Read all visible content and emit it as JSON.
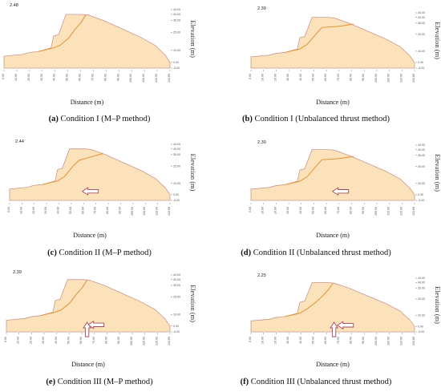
{
  "figure": {
    "colors": {
      "body_fill": "#fbe2ba",
      "body_stroke": "#c9978f",
      "slip": "#e3912f",
      "load_arrow": "#a8485a",
      "axis": "#555555"
    }
  },
  "chart_data": [
    {
      "type": "area",
      "panel": "a",
      "fos": "2.48",
      "caption_label": "(a)",
      "caption_text": "Condition I (M–P method)",
      "xlabel": "Distance (m)",
      "ylabel": "Elevation (m)",
      "xlim": [
        0,
        133.89
      ],
      "ylim": [
        -5,
        44
      ],
      "xticks": [
        "0.00",
        "10.00",
        "20.00",
        "30.00",
        "40.00",
        "50.00",
        "60.00",
        "70.00",
        "80.00",
        "90.00",
        "100.00",
        "110.00",
        "120.00",
        "133.89"
      ],
      "yticks": [
        [
          44,
          "44.00"
        ],
        [
          40,
          "40.00"
        ],
        [
          35,
          "35.00"
        ],
        [
          25,
          "25.00"
        ],
        [
          10,
          "10.00"
        ],
        [
          0,
          "0.00"
        ],
        [
          -5,
          "-5.00"
        ]
      ],
      "slope_profile": [
        [
          0,
          5
        ],
        [
          15,
          6.5
        ],
        [
          20,
          8
        ],
        [
          28,
          9
        ],
        [
          38,
          12
        ],
        [
          40,
          22
        ],
        [
          44,
          23
        ],
        [
          50,
          40
        ],
        [
          63,
          40
        ],
        [
          68,
          39.5
        ],
        [
          80,
          35
        ],
        [
          95,
          28
        ],
        [
          110,
          21
        ],
        [
          122,
          14
        ],
        [
          130,
          6
        ],
        [
          133.89,
          0
        ]
      ],
      "slip_surface": [
        [
          28,
          9
        ],
        [
          40,
          12
        ],
        [
          45,
          14
        ],
        [
          52,
          20
        ],
        [
          57,
          27
        ],
        [
          62,
          33
        ],
        [
          66,
          39.5
        ]
      ],
      "load_arrows": []
    },
    {
      "type": "area",
      "panel": "b",
      "fos": "2.39",
      "caption_label": "(b)",
      "caption_text": "Condition I (Unbalanced thrust method)",
      "xlabel": "Distance (m)",
      "ylabel": "Elevation (m)",
      "xlim": [
        0,
        133.89
      ],
      "ylim": [
        -5,
        44
      ],
      "xticks": [
        "0.00",
        "10.00",
        "20.00",
        "30.00",
        "40.00",
        "50.00",
        "60.00",
        "70.00",
        "80.00",
        "90.00",
        "100.00",
        "110.00",
        "120.00",
        "133.89"
      ],
      "yticks": [
        [
          44,
          "44.00"
        ],
        [
          40,
          "40.00"
        ],
        [
          35,
          "35.00"
        ],
        [
          25,
          "25.00"
        ],
        [
          10,
          "10.00"
        ],
        [
          0,
          "0.00"
        ],
        [
          -5,
          "-5.00"
        ]
      ],
      "slope_profile": [
        [
          0,
          5
        ],
        [
          15,
          6.5
        ],
        [
          20,
          8
        ],
        [
          28,
          9
        ],
        [
          38,
          12
        ],
        [
          40,
          22
        ],
        [
          44,
          23
        ],
        [
          50,
          40
        ],
        [
          63,
          40
        ],
        [
          68,
          39.5
        ],
        [
          80,
          35
        ],
        [
          95,
          28
        ],
        [
          110,
          21
        ],
        [
          122,
          14
        ],
        [
          130,
          6
        ],
        [
          133.89,
          0
        ]
      ],
      "slip_surface": [
        [
          28,
          9
        ],
        [
          40,
          12
        ],
        [
          46,
          16
        ],
        [
          53,
          25
        ],
        [
          58,
          31
        ],
        [
          72,
          32
        ],
        [
          84,
          34
        ]
      ],
      "load_arrows": []
    },
    {
      "type": "area",
      "panel": "c",
      "fos": "2.44",
      "caption_label": "(c)",
      "caption_text": "Condition II (M–P method)",
      "xlabel": "Distance (m)",
      "ylabel": "Elevation (m)",
      "xlim": [
        0,
        133.89
      ],
      "ylim": [
        -5,
        44
      ],
      "xticks": [
        "0.00",
        "10.00",
        "20.00",
        "30.00",
        "40.00",
        "50.00",
        "60.00",
        "70.00",
        "80.00",
        "90.00",
        "100.00",
        "110.00",
        "120.00",
        "133.89"
      ],
      "yticks": [
        [
          44,
          "44.00"
        ],
        [
          40,
          "40.00"
        ],
        [
          35,
          "35.00"
        ],
        [
          25,
          "25.00"
        ],
        [
          10,
          "10.00"
        ],
        [
          0,
          "0.00"
        ],
        [
          -5,
          "-5.00"
        ]
      ],
      "slope_profile": [
        [
          0,
          5
        ],
        [
          15,
          6.5
        ],
        [
          20,
          8
        ],
        [
          28,
          9
        ],
        [
          38,
          12
        ],
        [
          40,
          22
        ],
        [
          44,
          23
        ],
        [
          50,
          40
        ],
        [
          63,
          40
        ],
        [
          68,
          39.5
        ],
        [
          80,
          35
        ],
        [
          95,
          28
        ],
        [
          110,
          21
        ],
        [
          122,
          14
        ],
        [
          130,
          6
        ],
        [
          133.89,
          0
        ]
      ],
      "slip_surface": [
        [
          28,
          9
        ],
        [
          40,
          12
        ],
        [
          46,
          16
        ],
        [
          53,
          25
        ],
        [
          58,
          30
        ],
        [
          68,
          33
        ],
        [
          78,
          36
        ]
      ],
      "load_arrows": [
        {
          "dir": "left",
          "x": 66,
          "y": 3
        }
      ]
    },
    {
      "type": "area",
      "panel": "d",
      "fos": "2.30",
      "caption_label": "(d)",
      "caption_text": "Condition II (Unbalanced thrust method)",
      "xlabel": "Distance (m)",
      "ylabel": "Elevation (m)",
      "xlim": [
        0,
        133.89
      ],
      "ylim": [
        -5,
        44
      ],
      "xticks": [
        "0.00",
        "10.00",
        "20.00",
        "30.00",
        "40.00",
        "50.00",
        "60.00",
        "70.00",
        "80.00",
        "90.00",
        "100.00",
        "110.00",
        "120.00",
        "133.89"
      ],
      "yticks": [
        [
          44,
          "44.00"
        ],
        [
          40,
          "40.00"
        ],
        [
          35,
          "35.00"
        ],
        [
          25,
          "25.00"
        ],
        [
          10,
          "10.00"
        ],
        [
          0,
          "0.00"
        ],
        [
          -5,
          "-5.00"
        ]
      ],
      "slope_profile": [
        [
          0,
          5
        ],
        [
          15,
          6.5
        ],
        [
          20,
          8
        ],
        [
          28,
          9
        ],
        [
          38,
          12
        ],
        [
          40,
          22
        ],
        [
          44,
          23
        ],
        [
          50,
          40
        ],
        [
          63,
          40
        ],
        [
          68,
          39.5
        ],
        [
          80,
          35
        ],
        [
          95,
          28
        ],
        [
          110,
          21
        ],
        [
          122,
          14
        ],
        [
          130,
          6
        ],
        [
          133.89,
          0
        ]
      ],
      "slip_surface": [
        [
          28,
          9
        ],
        [
          40,
          12
        ],
        [
          46,
          16
        ],
        [
          53,
          25
        ],
        [
          58,
          31
        ],
        [
          72,
          32
        ],
        [
          84,
          34
        ]
      ],
      "load_arrows": [
        {
          "dir": "left",
          "x": 72,
          "y": 3
        }
      ]
    },
    {
      "type": "area",
      "panel": "e",
      "fos": "2.39",
      "caption_label": "(e)",
      "caption_text": "Condition III (M–P method)",
      "xlabel": "Distance (m)",
      "ylabel": "Elevation (m)",
      "xlim": [
        0,
        133.89
      ],
      "ylim": [
        -5,
        44
      ],
      "xticks": [
        "0.00",
        "10.00",
        "20.00",
        "30.00",
        "40.00",
        "50.00",
        "60.00",
        "70.00",
        "80.00",
        "90.00",
        "100.00",
        "110.00",
        "120.00",
        "133.89"
      ],
      "yticks": [
        [
          44,
          "44.00"
        ],
        [
          40,
          "40.00"
        ],
        [
          35,
          "35.00"
        ],
        [
          25,
          "25.00"
        ],
        [
          10,
          "10.00"
        ],
        [
          0,
          "0.00"
        ],
        [
          -5,
          "-5.00"
        ]
      ],
      "slope_profile": [
        [
          0,
          5
        ],
        [
          15,
          6.5
        ],
        [
          20,
          8
        ],
        [
          28,
          9
        ],
        [
          38,
          12
        ],
        [
          40,
          22
        ],
        [
          44,
          23
        ],
        [
          50,
          40
        ],
        [
          63,
          40
        ],
        [
          68,
          39.5
        ],
        [
          80,
          35
        ],
        [
          95,
          28
        ],
        [
          110,
          21
        ],
        [
          122,
          14
        ],
        [
          130,
          6
        ],
        [
          133.89,
          0
        ]
      ],
      "slip_surface": [
        [
          28,
          9
        ],
        [
          40,
          12
        ],
        [
          45,
          14
        ],
        [
          52,
          20
        ],
        [
          57,
          27
        ],
        [
          62,
          33
        ],
        [
          66,
          39.5
        ]
      ],
      "load_arrows": [
        {
          "dir": "left",
          "x": 72,
          "y": 1
        },
        {
          "dir": "up",
          "x": 66,
          "y": -5
        }
      ]
    },
    {
      "type": "area",
      "panel": "f",
      "fos": "2.25",
      "caption_label": "(f)",
      "caption_text": "Condition III (Unbalanced thrust method)",
      "xlabel": "Distance (m)",
      "ylabel": "Elevation (m)",
      "xlim": [
        0,
        133.89
      ],
      "ylim": [
        -5,
        44
      ],
      "xticks": [
        "0.00",
        "10.00",
        "20.00",
        "30.00",
        "40.00",
        "50.00",
        "60.00",
        "70.00",
        "80.00",
        "90.00",
        "100.00",
        "110.00",
        "120.00",
        "133.89"
      ],
      "yticks": [
        [
          44,
          "44.00"
        ],
        [
          40,
          "40.00"
        ],
        [
          35,
          "35.00"
        ],
        [
          25,
          "25.00"
        ],
        [
          10,
          "10.00"
        ],
        [
          0,
          "0.00"
        ],
        [
          -5,
          "-5.00"
        ]
      ],
      "slope_profile": [
        [
          0,
          5
        ],
        [
          15,
          6.5
        ],
        [
          20,
          8
        ],
        [
          28,
          9
        ],
        [
          38,
          12
        ],
        [
          40,
          22
        ],
        [
          44,
          23
        ],
        [
          50,
          40
        ],
        [
          63,
          40
        ],
        [
          68,
          39.5
        ],
        [
          80,
          35
        ],
        [
          95,
          28
        ],
        [
          110,
          21
        ],
        [
          122,
          14
        ],
        [
          130,
          6
        ],
        [
          133.89,
          0
        ]
      ],
      "slip_surface": [
        [
          28,
          9
        ],
        [
          40,
          12
        ],
        [
          46,
          16
        ],
        [
          52,
          21
        ],
        [
          58,
          27
        ],
        [
          63,
          33
        ],
        [
          67,
          39
        ]
      ],
      "load_arrows": [
        {
          "dir": "left",
          "x": 76,
          "y": 1
        },
        {
          "dir": "up",
          "x": 68,
          "y": -5
        }
      ]
    }
  ]
}
